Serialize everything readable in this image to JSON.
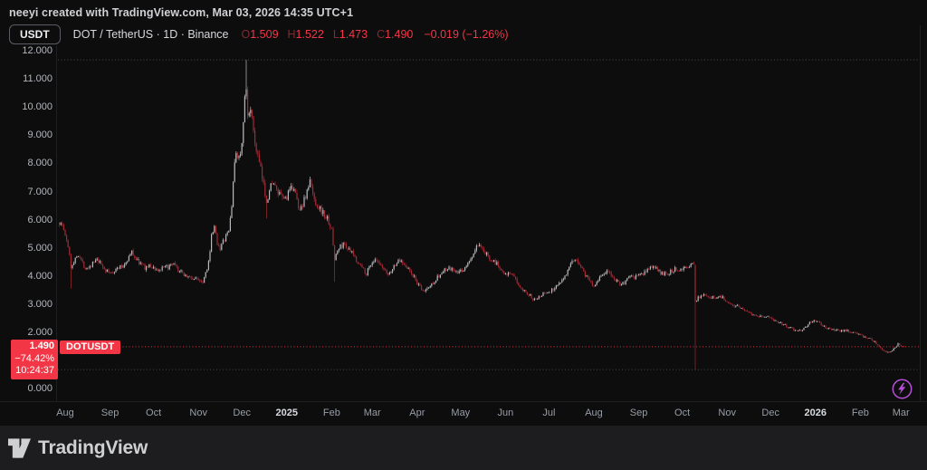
{
  "watermark": "neeyi created with TradingView.com, Mar 03, 2026 14:35 UTC+1",
  "legend": {
    "currency_button": "USDT",
    "symbol_title": "DOT / TetherUS · 1D · Binance",
    "ohlc": [
      {
        "key": "O",
        "value": "1.509"
      },
      {
        "key": "H",
        "value": "1.522"
      },
      {
        "key": "L",
        "value": "1.473"
      },
      {
        "key": "C",
        "value": "1.490"
      }
    ],
    "change": "−0.019 (−1.26%)"
  },
  "price_label": {
    "price": "1.490",
    "change_pct": "−74.42%",
    "countdown": "10:24:37",
    "symbol_badge": "DOTUSDT"
  },
  "footer": {
    "brand": "TradingView"
  },
  "icons": {
    "flash_icon": "lightning-bolt-in-circle",
    "tv_logo": "tradingview-17-mark"
  },
  "colors": {
    "background": "#0d0d0e",
    "up_candle": "#b8babd",
    "down_candle": "#a32a34",
    "accent_red": "#f23645",
    "ohlc_letter_red": "#802b33",
    "axis_text": "#b4b7bd",
    "flash_purple": "#b44fd6",
    "footer_bg": "#1d1d1f",
    "dotted_gray": "#787b86"
  },
  "chart_data": {
    "type": "candlestick",
    "symbol": "DOTUSDT",
    "pair": "DOT / TetherUS",
    "interval": "1D",
    "exchange": "Binance",
    "last_candle": {
      "open": 1.509,
      "high": 1.522,
      "low": 1.473,
      "close": 1.49
    },
    "change_abs": -0.019,
    "change_pct": -1.26,
    "last_price": 1.49,
    "series_high": 11.68,
    "series_low": 0.68,
    "grid": "off",
    "y_axis": {
      "side": "left",
      "min": 0,
      "max": 12,
      "step": 1,
      "ticks": [
        {
          "label": "12.000",
          "value": 12
        },
        {
          "label": "11.000",
          "value": 11
        },
        {
          "label": "10.000",
          "value": 10
        },
        {
          "label": "9.000",
          "value": 9
        },
        {
          "label": "8.000",
          "value": 8
        },
        {
          "label": "7.000",
          "value": 7
        },
        {
          "label": "6.000",
          "value": 6
        },
        {
          "label": "5.000",
          "value": 5
        },
        {
          "label": "4.000",
          "value": 4
        },
        {
          "label": "3.000",
          "value": 3
        },
        {
          "label": "2.000",
          "value": 2
        },
        {
          "label": "1.490",
          "value": 1.49,
          "is_price_label": true
        },
        {
          "label": "0.000",
          "value": 0
        }
      ]
    },
    "x_axis": {
      "start_date": "2024-07-28",
      "end_date": "2026-03-03",
      "labels": [
        {
          "label": "Aug",
          "day": 0
        },
        {
          "label": "Sep",
          "day": 31
        },
        {
          "label": "Oct",
          "day": 61
        },
        {
          "label": "Nov",
          "day": 92
        },
        {
          "label": "Dec",
          "day": 122
        },
        {
          "label": "2025",
          "day": 153,
          "year": true
        },
        {
          "label": "Feb",
          "day": 184
        },
        {
          "label": "Mar",
          "day": 212
        },
        {
          "label": "Apr",
          "day": 243
        },
        {
          "label": "May",
          "day": 273
        },
        {
          "label": "Jun",
          "day": 304
        },
        {
          "label": "Jul",
          "day": 334
        },
        {
          "label": "Aug",
          "day": 365
        },
        {
          "label": "Sep",
          "day": 396
        },
        {
          "label": "Oct",
          "day": 426
        },
        {
          "label": "Nov",
          "day": 457
        },
        {
          "label": "Dec",
          "day": 487
        },
        {
          "label": "2026",
          "day": 518,
          "year": true
        },
        {
          "label": "Feb",
          "day": 549
        },
        {
          "label": "Mar",
          "day": 577
        }
      ]
    },
    "anchors_day_close": [
      [
        -4,
        5.9
      ],
      [
        -2,
        5.8
      ],
      [
        0,
        5.45
      ],
      [
        2,
        5.0
      ],
      [
        3,
        4.8
      ],
      [
        4,
        4.3
      ],
      [
        5,
        4.45
      ],
      [
        7,
        4.6
      ],
      [
        9,
        4.8
      ],
      [
        12,
        4.45
      ],
      [
        14,
        4.3
      ],
      [
        17,
        4.35
      ],
      [
        19,
        4.45
      ],
      [
        22,
        4.55
      ],
      [
        25,
        4.4
      ],
      [
        28,
        4.2
      ],
      [
        31,
        4.1
      ],
      [
        34,
        4.2
      ],
      [
        37,
        4.3
      ],
      [
        40,
        4.35
      ],
      [
        43,
        4.6
      ],
      [
        46,
        4.85
      ],
      [
        49,
        4.6
      ],
      [
        52,
        4.45
      ],
      [
        55,
        4.3
      ],
      [
        58,
        4.35
      ],
      [
        61,
        4.3
      ],
      [
        64,
        4.2
      ],
      [
        67,
        4.25
      ],
      [
        70,
        4.3
      ],
      [
        73,
        4.35
      ],
      [
        75,
        4.4
      ],
      [
        78,
        4.2
      ],
      [
        81,
        4.1
      ],
      [
        84,
        4.0
      ],
      [
        86,
        3.95
      ],
      [
        89,
        3.9
      ],
      [
        92,
        3.9
      ],
      [
        95,
        3.82
      ],
      [
        98,
        4.3
      ],
      [
        100,
        4.8
      ],
      [
        101,
        5.4
      ],
      [
        103,
        5.7
      ],
      [
        105,
        5.2
      ],
      [
        107,
        5.0
      ],
      [
        110,
        5.3
      ],
      [
        113,
        5.6
      ],
      [
        115,
        6.5
      ],
      [
        116,
        7.4
      ],
      [
        118,
        8.4
      ],
      [
        120,
        8.2
      ],
      [
        122,
        8.6
      ],
      [
        124,
        10.2
      ],
      [
        125,
        10.6
      ],
      [
        126,
        9.6
      ],
      [
        128,
        10.1
      ],
      [
        130,
        9.0
      ],
      [
        132,
        8.5
      ],
      [
        134,
        8.0
      ],
      [
        137,
        7.2
      ],
      [
        139,
        6.7
      ],
      [
        141,
        7.0
      ],
      [
        143,
        7.4
      ],
      [
        146,
        7.0
      ],
      [
        149,
        6.8
      ],
      [
        152,
        6.75
      ],
      [
        155,
        7.0
      ],
      [
        158,
        7.2
      ],
      [
        161,
        6.4
      ],
      [
        164,
        6.55
      ],
      [
        167,
        7.0
      ],
      [
        169,
        7.35
      ],
      [
        171,
        6.9
      ],
      [
        173,
        6.6
      ],
      [
        176,
        6.4
      ],
      [
        179,
        6.15
      ],
      [
        182,
        5.95
      ],
      [
        184,
        5.6
      ],
      [
        186,
        4.6
      ],
      [
        188,
        4.9
      ],
      [
        190,
        5.05
      ],
      [
        193,
        5.15
      ],
      [
        196,
        4.9
      ],
      [
        199,
        4.75
      ],
      [
        202,
        4.5
      ],
      [
        205,
        4.3
      ],
      [
        208,
        4.1
      ],
      [
        211,
        4.45
      ],
      [
        214,
        4.55
      ],
      [
        217,
        4.4
      ],
      [
        220,
        4.2
      ],
      [
        223,
        4.05
      ],
      [
        226,
        4.25
      ],
      [
        229,
        4.5
      ],
      [
        232,
        4.55
      ],
      [
        235,
        4.4
      ],
      [
        238,
        4.15
      ],
      [
        241,
        3.95
      ],
      [
        244,
        3.65
      ],
      [
        247,
        3.45
      ],
      [
        250,
        3.55
      ],
      [
        253,
        3.7
      ],
      [
        256,
        3.9
      ],
      [
        259,
        4.05
      ],
      [
        262,
        4.2
      ],
      [
        265,
        4.25
      ],
      [
        268,
        4.2
      ],
      [
        271,
        4.1
      ],
      [
        274,
        4.2
      ],
      [
        277,
        4.35
      ],
      [
        280,
        4.6
      ],
      [
        283,
        4.9
      ],
      [
        285,
        5.1
      ],
      [
        287,
        4.95
      ],
      [
        290,
        4.8
      ],
      [
        293,
        4.65
      ],
      [
        296,
        4.55
      ],
      [
        299,
        4.35
      ],
      [
        302,
        4.2
      ],
      [
        305,
        4.1
      ],
      [
        308,
        4.05
      ],
      [
        311,
        3.85
      ],
      [
        314,
        3.65
      ],
      [
        317,
        3.5
      ],
      [
        320,
        3.35
      ],
      [
        323,
        3.2
      ],
      [
        326,
        3.25
      ],
      [
        329,
        3.35
      ],
      [
        332,
        3.4
      ],
      [
        335,
        3.45
      ],
      [
        338,
        3.6
      ],
      [
        341,
        3.75
      ],
      [
        344,
        3.95
      ],
      [
        347,
        4.2
      ],
      [
        350,
        4.45
      ],
      [
        353,
        4.62
      ],
      [
        356,
        4.35
      ],
      [
        359,
        4.05
      ],
      [
        362,
        3.85
      ],
      [
        365,
        3.65
      ],
      [
        368,
        3.9
      ],
      [
        371,
        4.05
      ],
      [
        374,
        4.18
      ],
      [
        377,
        4.0
      ],
      [
        380,
        3.88
      ],
      [
        383,
        3.75
      ],
      [
        386,
        3.72
      ],
      [
        389,
        4.0
      ],
      [
        392,
        3.92
      ],
      [
        395,
        4.0
      ],
      [
        398,
        4.05
      ],
      [
        401,
        4.15
      ],
      [
        404,
        4.35
      ],
      [
        407,
        4.3
      ],
      [
        410,
        4.15
      ],
      [
        413,
        4.05
      ],
      [
        416,
        4.12
      ],
      [
        419,
        4.2
      ],
      [
        422,
        4.25
      ],
      [
        425,
        4.28
      ],
      [
        428,
        4.32
      ],
      [
        431,
        4.36
      ],
      [
        434,
        4.38
      ],
      [
        435,
        3.1
      ],
      [
        437,
        3.25
      ],
      [
        440,
        3.35
      ],
      [
        443,
        3.3
      ],
      [
        446,
        3.22
      ],
      [
        449,
        3.25
      ],
      [
        452,
        3.28
      ],
      [
        455,
        3.2
      ],
      [
        457,
        3.1
      ],
      [
        460,
        3.0
      ],
      [
        463,
        2.95
      ],
      [
        466,
        2.9
      ],
      [
        469,
        2.82
      ],
      [
        472,
        2.72
      ],
      [
        475,
        2.65
      ],
      [
        478,
        2.6
      ],
      [
        481,
        2.58
      ],
      [
        484,
        2.55
      ],
      [
        487,
        2.52
      ],
      [
        490,
        2.42
      ],
      [
        493,
        2.35
      ],
      [
        496,
        2.28
      ],
      [
        499,
        2.2
      ],
      [
        502,
        2.12
      ],
      [
        505,
        2.06
      ],
      [
        508,
        2.08
      ],
      [
        511,
        2.18
      ],
      [
        514,
        2.35
      ],
      [
        517,
        2.42
      ],
      [
        519,
        2.38
      ],
      [
        522,
        2.28
      ],
      [
        525,
        2.18
      ],
      [
        528,
        2.12
      ],
      [
        531,
        2.1
      ],
      [
        535,
        2.05
      ],
      [
        539,
        2.08
      ],
      [
        543,
        2.0
      ],
      [
        547,
        1.95
      ],
      [
        551,
        1.86
      ],
      [
        555,
        1.78
      ],
      [
        559,
        1.65
      ],
      [
        563,
        1.42
      ],
      [
        566,
        1.32
      ],
      [
        569,
        1.3
      ],
      [
        571,
        1.36
      ],
      [
        573,
        1.45
      ],
      [
        575,
        1.6
      ],
      [
        577,
        1.54
      ],
      [
        579,
        1.49
      ]
    ],
    "events": {
      "4": {
        "low": 3.55
      },
      "125": {
        "high": 11.68
      },
      "139": {
        "low": 6.05
      },
      "186": {
        "low": 3.8
      },
      "435": {
        "open": 4.38,
        "high": 4.42,
        "low": 0.68,
        "close": 3.1
      },
      "579": {
        "open": 1.509,
        "high": 1.522,
        "low": 1.473,
        "close": 1.49
      }
    }
  }
}
